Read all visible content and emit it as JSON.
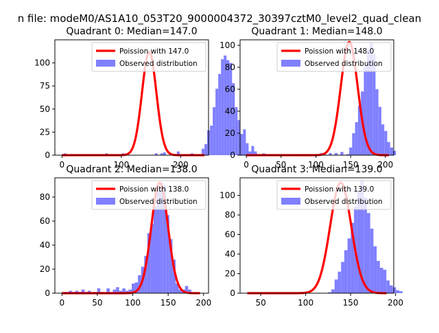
{
  "figure": {
    "suptitle": "n file: modeM0/AS1A10_053T20_9000004372_30397cztM0_level2_quad_clean"
  },
  "colors": {
    "hist_fill": "#8080ff",
    "poisson_line": "#ff0000",
    "axes_edge": "#000000"
  },
  "chart_data": [
    {
      "type": "bar",
      "title": "Quadrant 0: Median=147.0",
      "median": 147.0,
      "xlim": [
        -12,
        247
      ],
      "ylim": [
        0,
        125
      ],
      "xticks": [
        0,
        100,
        200
      ],
      "yticks": [
        0,
        25,
        50,
        75,
        100
      ],
      "legend_position": "upper-right",
      "legend": [
        "Poission with 147.0",
        "Observed distribution"
      ],
      "bins": {
        "start": 3,
        "width": 4.65
      },
      "observed": [
        2,
        0,
        0,
        0,
        0,
        0,
        0,
        0,
        0,
        0,
        0,
        0,
        0,
        0,
        0,
        2,
        0,
        0,
        0,
        0,
        0,
        2,
        0,
        0,
        0,
        0,
        0,
        0,
        0,
        0,
        0,
        0,
        0,
        2,
        0,
        2,
        3,
        0,
        0,
        0,
        0,
        4,
        0,
        0,
        0,
        0,
        2,
        0,
        1,
        0,
        7,
        12,
        27,
        32,
        52,
        72,
        88,
        104,
        108,
        103,
        100,
        78,
        52,
        38,
        23,
        28,
        13,
        4,
        10,
        4,
        0,
        0,
        2,
        0,
        0,
        0,
        0,
        0,
        0,
        0,
        0,
        0,
        0
      ],
      "poisson_peak": 112,
      "poisson_x": [
        0,
        240
      ]
    },
    {
      "type": "bar",
      "title": "Quadrant 1: Median=148.0",
      "median": 148.0,
      "xlim": [
        -9,
        212
      ],
      "ylim": [
        0,
        105
      ],
      "xticks": [
        0,
        50,
        100,
        150,
        200
      ],
      "yticks": [
        0,
        20,
        40,
        60,
        80,
        100
      ],
      "legend_position": "upper-right",
      "legend": [
        "Poission with 148.0",
        "Observed distribution"
      ],
      "bins": {
        "start": 1,
        "width": 4.2
      },
      "observed": [
        0,
        0,
        0,
        0,
        0,
        0,
        0,
        0,
        0,
        0,
        0,
        0,
        0,
        0,
        0,
        0,
        0,
        0,
        0,
        1,
        0,
        0,
        0,
        0,
        0,
        2,
        1,
        0,
        2,
        0,
        2,
        0,
        3,
        0,
        1,
        7,
        20,
        30,
        45,
        58,
        81,
        96,
        102,
        92,
        60,
        44,
        28,
        22,
        12,
        7,
        4,
        0
      ],
      "poisson_peak": 103,
      "poisson_x": [
        0,
        205
      ]
    },
    {
      "type": "bar",
      "title": "Quadrant 2: Median=138.0",
      "median": 138.0,
      "xlim": [
        -10,
        207
      ],
      "ylim": [
        0,
        96
      ],
      "xticks": [
        0,
        50,
        100,
        150,
        200
      ],
      "yticks": [
        0,
        20,
        40,
        60,
        80
      ],
      "legend_position": "upper-right",
      "legend": [
        "Poission with 138.0",
        "Observed distribution"
      ],
      "bins": {
        "start": 1,
        "width": 4.43
      },
      "observed": [
        1,
        1,
        2,
        1,
        2,
        1,
        3,
        1,
        2,
        0,
        1,
        4,
        1,
        0,
        4,
        0,
        3,
        5,
        2,
        4,
        2,
        3,
        8,
        9,
        15,
        22,
        31,
        50,
        58,
        72,
        85,
        92,
        90,
        65,
        45,
        28,
        8,
        3,
        3,
        6,
        3,
        0,
        0,
        0
      ],
      "poisson_peak": 92,
      "poisson_x": [
        0,
        195
      ]
    },
    {
      "type": "bar",
      "title": "Quadrant 3: Median=139.0",
      "median": 139.0,
      "xlim": [
        27,
        198
      ],
      "ylim": [
        0,
        118
      ],
      "xticks": [
        50,
        100,
        150,
        200
      ],
      "yticks": [
        0,
        20,
        40,
        60,
        80,
        100
      ],
      "legend_position": "upper-right",
      "legend": [
        "Poission with 139.0",
        "Observed distribution"
      ],
      "bins": {
        "start": 35,
        "width": 3.6
      },
      "observed": [
        0,
        0,
        0,
        0,
        0,
        0,
        0,
        0,
        0,
        0,
        0,
        0,
        0,
        0,
        0,
        0,
        0,
        0,
        0,
        0,
        0,
        0,
        0,
        0,
        0,
        1,
        4,
        14,
        22,
        32,
        44,
        56,
        72,
        89,
        105,
        115,
        98,
        82,
        66,
        48,
        33,
        26,
        24,
        13,
        8,
        6,
        3,
        2
      ],
      "poisson_peak": 113,
      "poisson_x": [
        35,
        190
      ]
    }
  ]
}
